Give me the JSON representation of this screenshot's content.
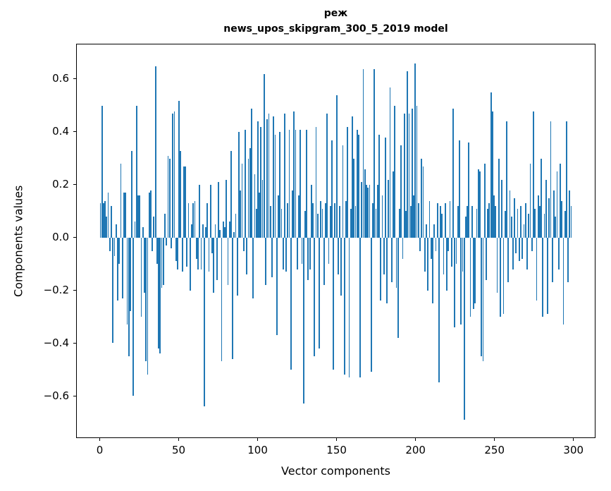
{
  "title": {
    "line1": "реж",
    "line2": "news_upos_skipgram_300_5_2019 model"
  },
  "axes": {
    "xlabel": "Vector components",
    "ylabel": "Components values"
  },
  "chart_data": {
    "type": "bar",
    "title": "реж",
    "subtitle": "news_upos_skipgram_300_5_2019 model",
    "xlabel": "Vector components",
    "ylabel": "Components values",
    "legend": "none",
    "grid": false,
    "bar_color": "#1f77b4",
    "bar_width": 0.8,
    "xlim": [
      -14.95,
      313.95
    ],
    "ylim": [
      -0.758,
      0.733
    ],
    "x_ticks": [
      0,
      50,
      100,
      150,
      200,
      250,
      300
    ],
    "x_tick_labels": [
      "0",
      "50",
      "100",
      "150",
      "200",
      "250",
      "300"
    ],
    "y_ticks": [
      0.6,
      0.4,
      0.2,
      0.0,
      -0.2,
      -0.4,
      -0.6
    ],
    "y_tick_labels": [
      "0.6",
      "0.4",
      "0.2",
      "0.0",
      "−0.2",
      "−0.4",
      "−0.6"
    ],
    "values": [
      0.13,
      0.5,
      0.13,
      0.14,
      0.08,
      0.17,
      -0.05,
      0.12,
      -0.4,
      -0.07,
      0.05,
      -0.24,
      -0.1,
      0.28,
      -0.23,
      0.17,
      0.17,
      -0.33,
      -0.45,
      -0.28,
      0.33,
      -0.6,
      0.06,
      0.5,
      0.16,
      0.16,
      -0.3,
      0.04,
      -0.21,
      -0.47,
      -0.52,
      0.17,
      0.18,
      -0.05,
      0.08,
      0.65,
      -0.1,
      -0.42,
      -0.44,
      -0.19,
      -0.18,
      0.09,
      -0.03,
      0.31,
      0.3,
      -0.04,
      0.47,
      0.48,
      -0.09,
      -0.12,
      0.52,
      0.33,
      -0.13,
      0.27,
      0.27,
      -0.11,
      0.13,
      -0.2,
      0.05,
      0.13,
      0.14,
      -0.08,
      -0.12,
      0.2,
      -0.12,
      0.05,
      -0.64,
      0.04,
      0.13,
      -0.13,
      0.2,
      -0.06,
      -0.21,
      0.05,
      -0.16,
      0.21,
      0.03,
      -0.47,
      0.06,
      0.04,
      0.22,
      -0.18,
      0.06,
      0.33,
      -0.46,
      0.02,
      0.09,
      -0.22,
      0.4,
      0.18,
      0.28,
      -0.05,
      0.41,
      -0.14,
      0.3,
      0.34,
      0.49,
      -0.23,
      0.24,
      0.11,
      0.44,
      0.17,
      0.42,
      0.22,
      0.62,
      -0.18,
      0.45,
      0.47,
      0.12,
      -0.15,
      0.46,
      0.39,
      -0.37,
      0.16,
      0.4,
      0.11,
      -0.12,
      0.47,
      -0.13,
      0.13,
      0.41,
      -0.5,
      0.18,
      0.48,
      0.41,
      -0.12,
      0.16,
      0.41,
      -0.1,
      -0.63,
      0.1,
      0.41,
      -0.16,
      -0.12,
      0.2,
      0.13,
      -0.45,
      0.42,
      0.09,
      -0.42,
      0.14,
      0.11,
      -0.18,
      0.13,
      0.47,
      -0.1,
      0.12,
      0.37,
      -0.5,
      0.13,
      0.54,
      -0.14,
      0.12,
      -0.22,
      0.35,
      -0.52,
      0.14,
      0.42,
      -0.53,
      0.11,
      0.46,
      0.3,
      0.12,
      0.41,
      0.39,
      -0.53,
      0.21,
      0.64,
      0.26,
      0.2,
      0.19,
      0.2,
      -0.51,
      0.13,
      0.64,
      0.11,
      0.2,
      0.39,
      -0.24,
      0.16,
      -0.14,
      0.38,
      -0.25,
      0.22,
      0.57,
      -0.17,
      0.25,
      0.5,
      -0.19,
      -0.38,
      0.11,
      0.35,
      -0.08,
      0.47,
      0.1,
      0.63,
      0.47,
      0.12,
      0.49,
      0.16,
      0.66,
      0.5,
      0.13,
      -0.05,
      0.3,
      0.27,
      -0.13,
      0.05,
      -0.2,
      0.14,
      -0.08,
      -0.25,
      0.05,
      -0.05,
      0.13,
      -0.55,
      0.12,
      0.09,
      -0.14,
      0.13,
      -0.2,
      -0.05,
      0.14,
      -0.11,
      0.49,
      -0.34,
      -0.1,
      0.12,
      0.37,
      -0.33,
      -0.13,
      -0.69,
      0.08,
      0.12,
      0.36,
      -0.3,
      0.12,
      -0.27,
      -0.25,
      0.11,
      0.26,
      0.25,
      -0.45,
      -0.47,
      0.28,
      -0.16,
      0.11,
      0.13,
      0.55,
      0.48,
      0.16,
      0.12,
      -0.21,
      0.3,
      -0.3,
      0.22,
      -0.29,
      0.1,
      0.44,
      -0.17,
      0.18,
      0.08,
      -0.12,
      0.15,
      -0.06,
      0.11,
      -0.09,
      0.12,
      -0.08,
      0.05,
      0.13,
      -0.12,
      0.09,
      0.28,
      -0.05,
      0.48,
      0.11,
      -0.24,
      0.16,
      0.12,
      0.3,
      -0.3,
      0.09,
      0.22,
      -0.29,
      0.15,
      0.44,
      -0.17,
      0.18,
      0.08,
      0.25,
      -0.12,
      0.28,
      0.14,
      -0.33,
      0.1,
      0.44,
      -0.17,
      0.18,
      0.12
    ]
  }
}
